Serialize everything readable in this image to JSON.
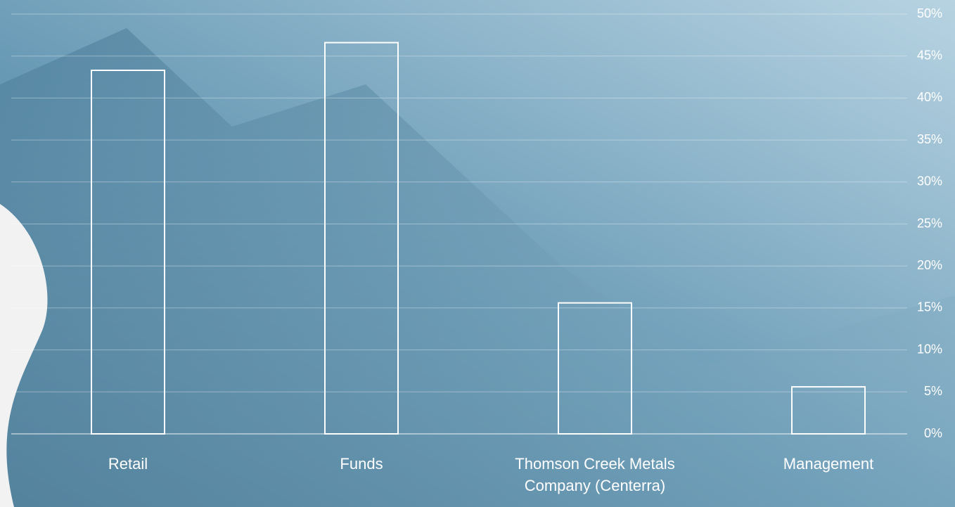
{
  "chart_data": {
    "type": "bar",
    "categories": [
      "Retail",
      "Funds",
      "Thomson Creek Metals Company (Centerra)",
      "Management"
    ],
    "values": [
      43.3,
      46.6,
      15.6,
      5.6
    ],
    "color": "#ffffff",
    "ylim": [
      0,
      50
    ],
    "yticks": [
      {
        "value": 0,
        "label": "0%"
      },
      {
        "value": 5,
        "label": "5%"
      },
      {
        "value": 10,
        "label": "10%"
      },
      {
        "value": 15,
        "label": "15%"
      },
      {
        "value": 20,
        "label": "20%"
      },
      {
        "value": 25,
        "label": "25%"
      },
      {
        "value": 30,
        "label": "30%"
      },
      {
        "value": 35,
        "label": "35%"
      },
      {
        "value": 40,
        "label": "40%"
      },
      {
        "value": 45,
        "label": "45%"
      },
      {
        "value": 50,
        "label": "50%"
      }
    ],
    "grid": true
  }
}
